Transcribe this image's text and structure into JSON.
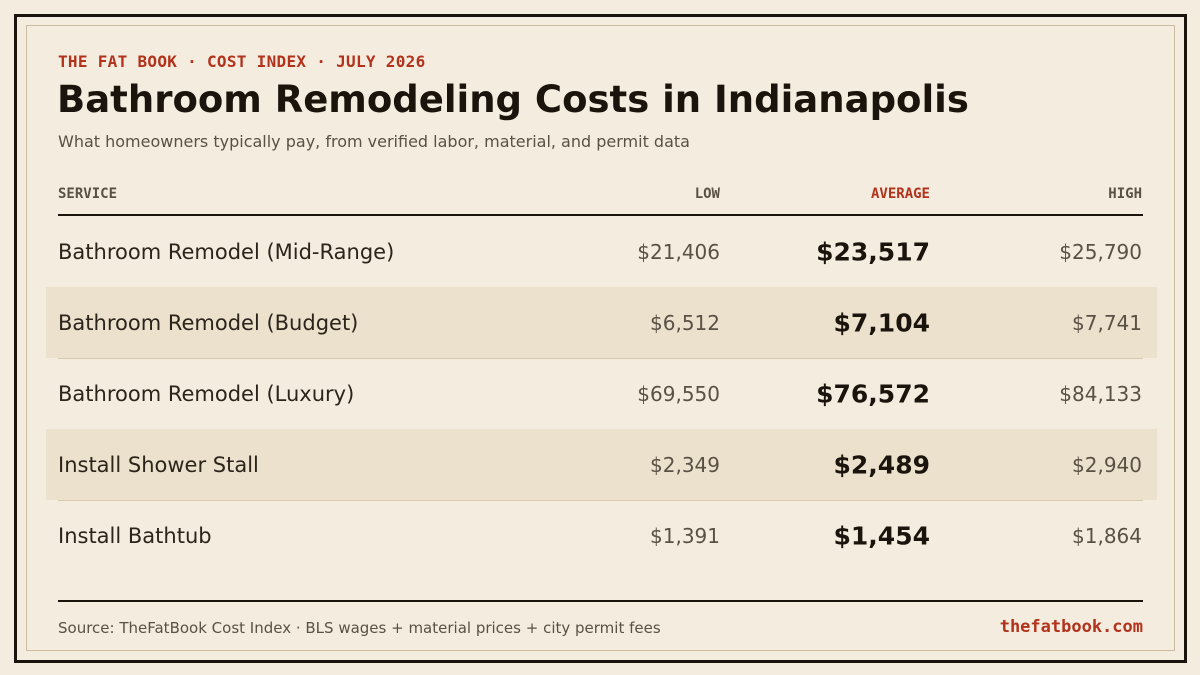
{
  "header": {
    "eyebrow": "THE FAT BOOK · COST INDEX · JULY 2026",
    "title": "Bathroom Remodeling Costs in Indianapolis",
    "subtitle": "What homeowners typically pay, from verified labor, material, and permit data"
  },
  "table": {
    "columns": {
      "service": "SERVICE",
      "low": "LOW",
      "average": "AVERAGE",
      "high": "HIGH"
    },
    "rows": [
      {
        "service": "Bathroom Remodel (Mid-Range)",
        "low": "$21,406",
        "average": "$23,517",
        "high": "$25,790"
      },
      {
        "service": "Bathroom Remodel (Budget)",
        "low": "$6,512",
        "average": "$7,104",
        "high": "$7,741"
      },
      {
        "service": "Bathroom Remodel (Luxury)",
        "low": "$69,550",
        "average": "$76,572",
        "high": "$84,133"
      },
      {
        "service": "Install Shower Stall",
        "low": "$2,349",
        "average": "$2,489",
        "high": "$2,940"
      },
      {
        "service": "Install Bathtub",
        "low": "$1,391",
        "average": "$1,454",
        "high": "$1,864"
      }
    ]
  },
  "footer": {
    "source": "Source: TheFatBook Cost Index · BLS wages + material prices + city permit fees",
    "site": "thefatbook.com"
  },
  "colors": {
    "background": "#f4ecde",
    "accent": "#b2321c",
    "row_alt": "#ece1cd",
    "ink": "#1a140d"
  }
}
